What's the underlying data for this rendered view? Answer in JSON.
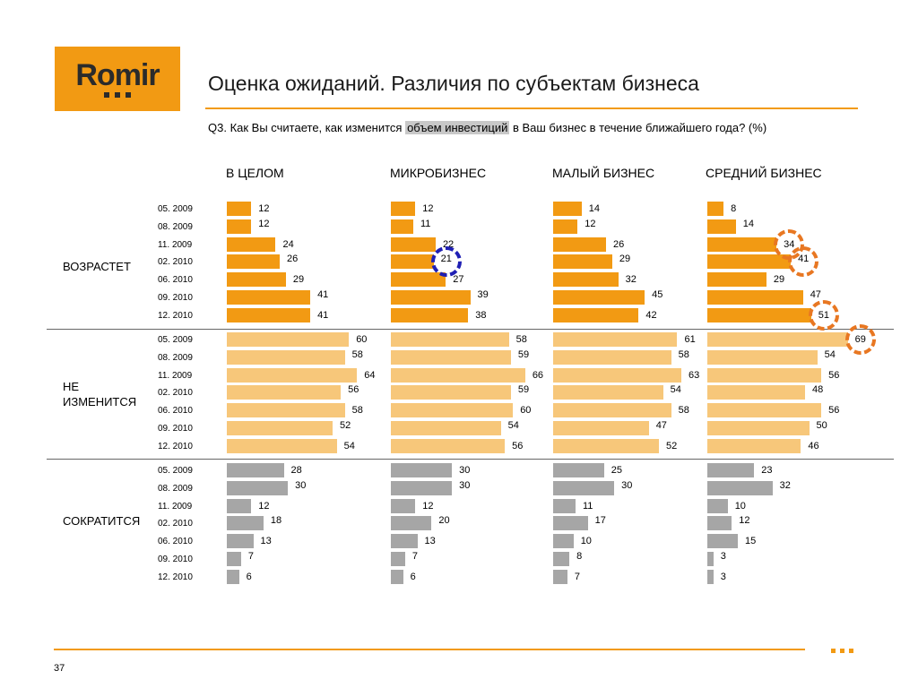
{
  "brand": {
    "name": "Romir",
    "accent": "#f29a13"
  },
  "header": {
    "title": "Оценка ожиданий. Различия по субъектам бизнеса",
    "question_prefix": "Q3. Как Вы считаете, как изменится ",
    "question_highlight": "объем инвестиций",
    "question_suffix": " в Ваш бизнес в течение ближайшего года? (%)"
  },
  "footer": {
    "page_number": "37"
  },
  "chart_data": {
    "type": "bar",
    "orientation": "horizontal",
    "columns": [
      "В ЦЕЛОМ",
      "МИКРОБИЗНЕС",
      "МАЛЫЙ БИЗНЕС",
      "СРЕДНИЙ БИЗНЕС"
    ],
    "periods": [
      "05. 2009",
      "08. 2009",
      "11. 2009",
      "02. 2010",
      "06. 2010",
      "09. 2010",
      "12. 2010"
    ],
    "groups": [
      {
        "label": "ВОЗРАСТЕТ",
        "color": "#f29a13",
        "values": [
          [
            12,
            12,
            24,
            26,
            29,
            41,
            41
          ],
          [
            12,
            11,
            22,
            21,
            27,
            39,
            38
          ],
          [
            14,
            12,
            26,
            29,
            32,
            45,
            42
          ],
          [
            8,
            14,
            34,
            41,
            29,
            47,
            51
          ]
        ]
      },
      {
        "label": "НЕ ИЗМЕНИТСЯ",
        "color": "#f7c77a",
        "values": [
          [
            60,
            58,
            64,
            56,
            58,
            52,
            54
          ],
          [
            58,
            59,
            66,
            59,
            60,
            54,
            56
          ],
          [
            61,
            58,
            63,
            54,
            58,
            47,
            52
          ],
          [
            69,
            54,
            56,
            48,
            56,
            50,
            46
          ]
        ]
      },
      {
        "label": "СОКРАТИТСЯ",
        "color": "#a6a6a6",
        "values": [
          [
            28,
            30,
            12,
            18,
            13,
            7,
            6
          ],
          [
            30,
            30,
            12,
            20,
            13,
            7,
            6
          ],
          [
            25,
            30,
            11,
            17,
            10,
            8,
            7
          ],
          [
            23,
            32,
            10,
            12,
            15,
            3,
            3
          ]
        ]
      }
    ],
    "highlights": [
      {
        "group": 0,
        "column": 1,
        "period": 3,
        "color": "#1f1fb4"
      },
      {
        "group": 0,
        "column": 3,
        "period": 2,
        "color": "#e87722"
      },
      {
        "group": 0,
        "column": 3,
        "period": 3,
        "color": "#e87722"
      },
      {
        "group": 0,
        "column": 3,
        "period": 6,
        "color": "#e87722"
      },
      {
        "group": 1,
        "column": 3,
        "period": 0,
        "color": "#e87722"
      }
    ],
    "xlim": [
      0,
      70
    ]
  }
}
